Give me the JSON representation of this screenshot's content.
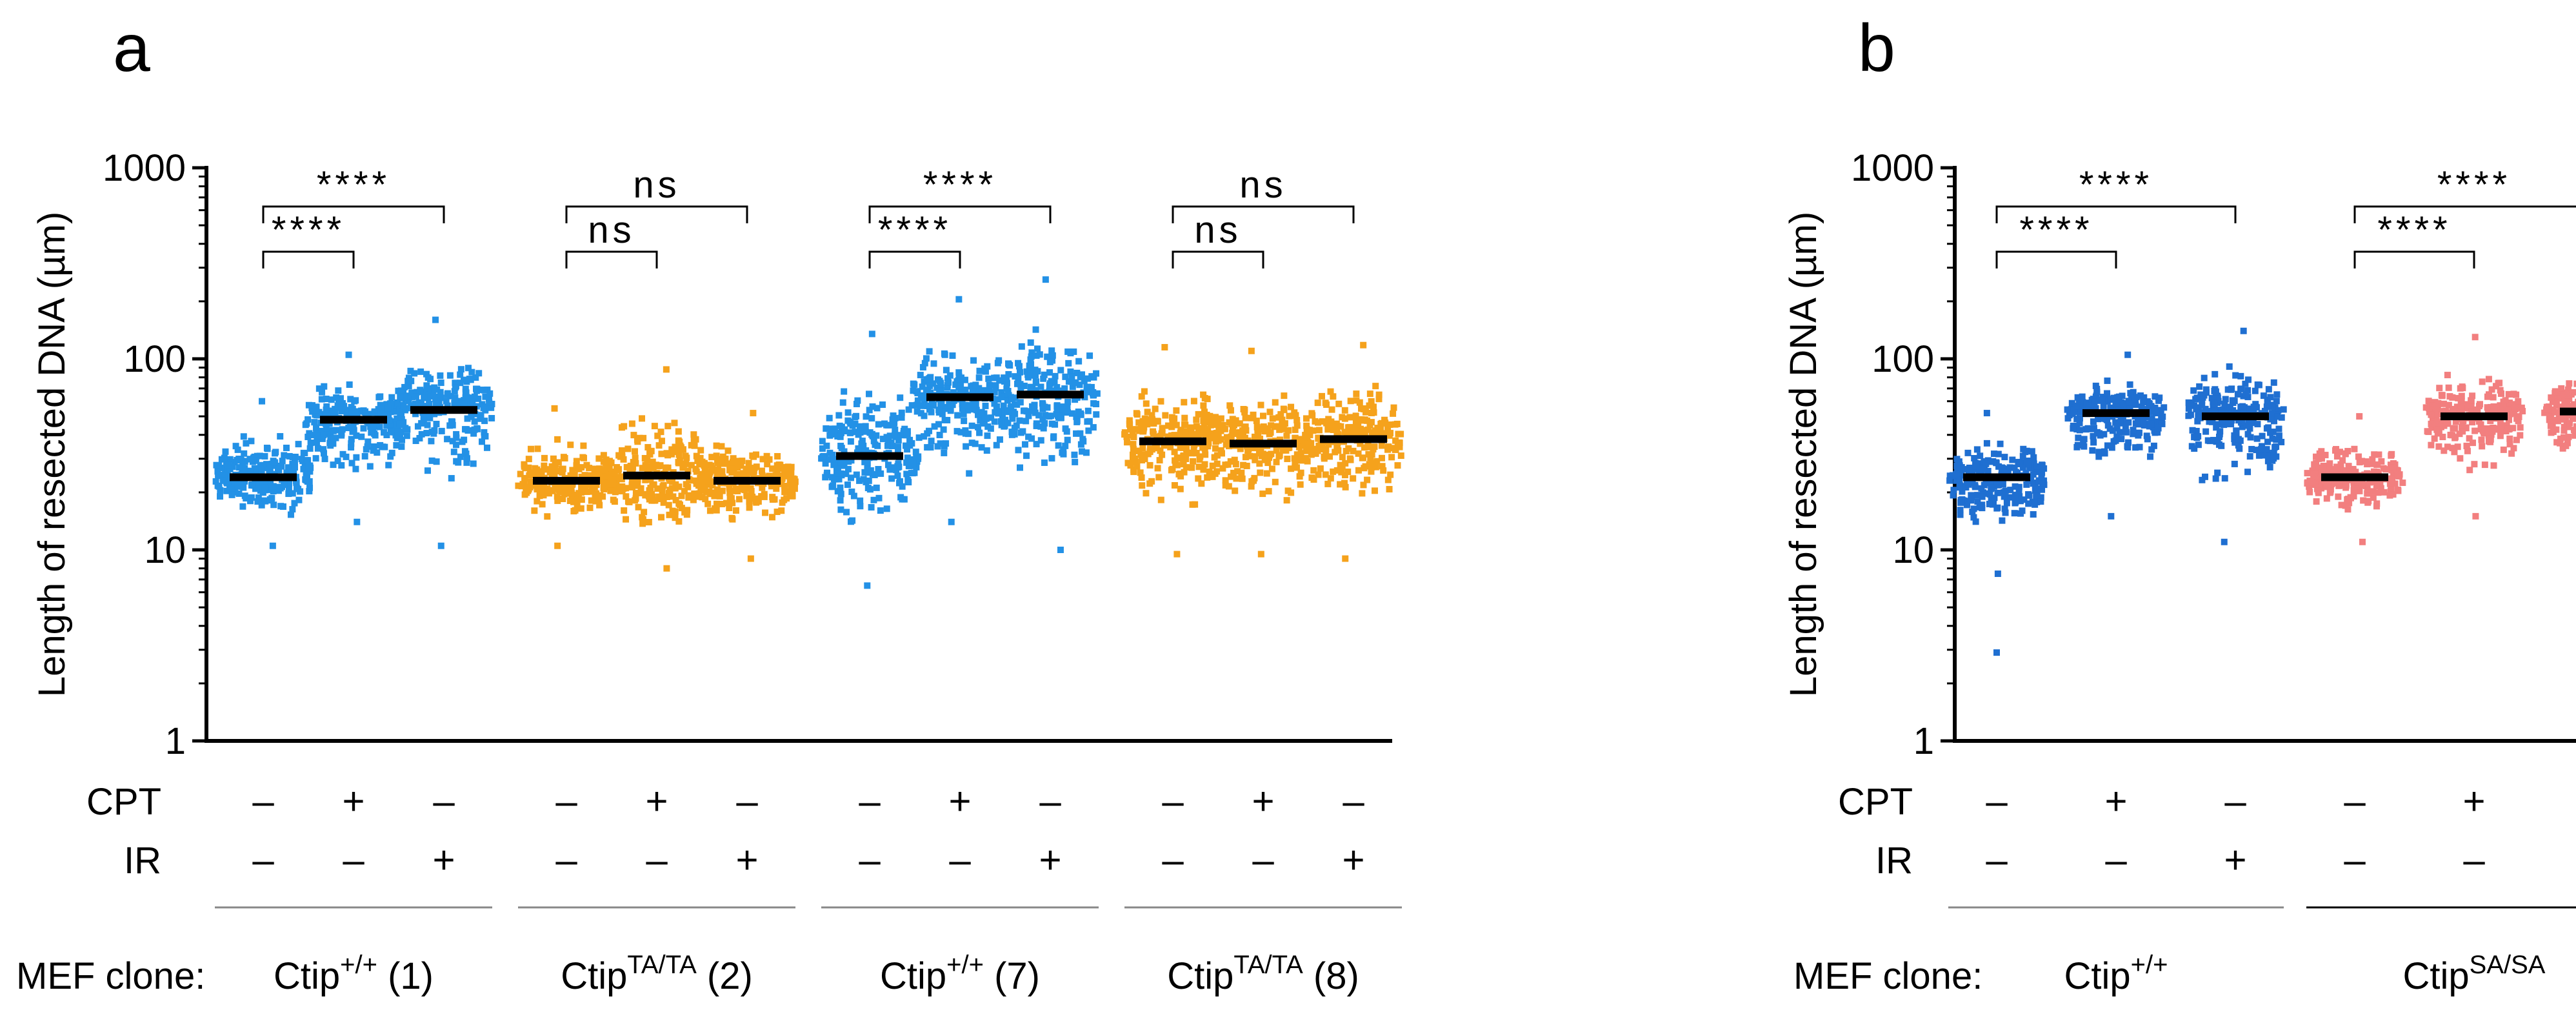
{
  "chart_data": [
    {
      "panel": "a",
      "type": "scatter",
      "ylabel": "Length of resected DNA (µm)",
      "yscale": "log",
      "ylim": [
        1,
        1000
      ],
      "yticks": [
        "1",
        "10",
        "100",
        "1000"
      ],
      "row_labels": [
        "CPT",
        "IR"
      ],
      "group_prefix": "MEF clone:",
      "treatments": [
        {
          "cpt": "–",
          "ir": "–"
        },
        {
          "cpt": "+",
          "ir": "–"
        },
        {
          "cpt": "–",
          "ir": "+"
        },
        {
          "cpt": "–",
          "ir": "–"
        },
        {
          "cpt": "+",
          "ir": "–"
        },
        {
          "cpt": "–",
          "ir": "+"
        },
        {
          "cpt": "–",
          "ir": "–"
        },
        {
          "cpt": "+",
          "ir": "–"
        },
        {
          "cpt": "–",
          "ir": "+"
        },
        {
          "cpt": "–",
          "ir": "–"
        },
        {
          "cpt": "+",
          "ir": "–"
        },
        {
          "cpt": "–",
          "ir": "+"
        }
      ],
      "groups": [
        {
          "base": "Ctip",
          "sup": "+/+",
          "suffix": " (1)",
          "color": "#2391e6"
        },
        {
          "base": "Ctip",
          "sup": "TA/TA",
          "suffix": " (2)",
          "color": "#f5a21c"
        },
        {
          "base": "Ctip",
          "sup": "+/+",
          "suffix": " (7)",
          "color": "#2391e6"
        },
        {
          "base": "Ctip",
          "sup": "TA/TA",
          "suffix": " (8)",
          "color": "#f5a21c"
        }
      ],
      "series": [
        {
          "color": "#2391e6",
          "median": 24,
          "min": 10.5,
          "max": 60,
          "n": 230
        },
        {
          "color": "#2391e6",
          "median": 48,
          "min": 14,
          "max": 105,
          "n": 230
        },
        {
          "color": "#2391e6",
          "median": 54,
          "min": 10.5,
          "max": 160,
          "n": 230
        },
        {
          "color": "#f5a21c",
          "median": 23,
          "min": 10.5,
          "max": 55,
          "n": 230
        },
        {
          "color": "#f5a21c",
          "median": 24.5,
          "min": 8,
          "max": 88,
          "n": 230
        },
        {
          "color": "#f5a21c",
          "median": 23,
          "min": 9,
          "max": 52,
          "n": 230
        },
        {
          "color": "#2391e6",
          "median": 31,
          "min": 6.5,
          "max": 135,
          "n": 230
        },
        {
          "color": "#2391e6",
          "median": 63,
          "min": 14,
          "max": 205,
          "n": 230
        },
        {
          "color": "#2391e6",
          "median": 65,
          "min": 10,
          "max": 260,
          "n": 230
        },
        {
          "color": "#f5a21c",
          "median": 37,
          "min": 9.5,
          "max": 115,
          "n": 230
        },
        {
          "color": "#f5a21c",
          "median": 36,
          "min": 9.5,
          "max": 110,
          "n": 230
        },
        {
          "color": "#f5a21c",
          "median": 38,
          "min": 9,
          "max": 118,
          "n": 230
        }
      ],
      "comparisons": [
        {
          "from": 0,
          "to": 1,
          "label": "****"
        },
        {
          "from": 0,
          "to": 2,
          "label": "****"
        },
        {
          "from": 3,
          "to": 4,
          "label": "ns"
        },
        {
          "from": 3,
          "to": 5,
          "label": "ns"
        },
        {
          "from": 6,
          "to": 7,
          "label": "****"
        },
        {
          "from": 6,
          "to": 8,
          "label": "****"
        },
        {
          "from": 9,
          "to": 10,
          "label": "ns"
        },
        {
          "from": 9,
          "to": 11,
          "label": "ns"
        }
      ]
    },
    {
      "panel": "b",
      "type": "scatter",
      "ylabel": "Length of resected DNA (µm)",
      "yscale": "log",
      "ylim": [
        1,
        1000
      ],
      "yticks": [
        "1",
        "10",
        "100",
        "1000"
      ],
      "row_labels": [
        "CPT",
        "IR"
      ],
      "group_prefix": "MEF clone:",
      "treatments": [
        {
          "cpt": "–",
          "ir": "–"
        },
        {
          "cpt": "+",
          "ir": "–"
        },
        {
          "cpt": "–",
          "ir": "+"
        },
        {
          "cpt": "–",
          "ir": "–"
        },
        {
          "cpt": "+",
          "ir": "–"
        },
        {
          "cpt": "–",
          "ir": "+"
        }
      ],
      "groups": [
        {
          "base": "Ctip",
          "sup": "+/+",
          "suffix": "",
          "color": "#1f6fd1"
        },
        {
          "base": "Ctip",
          "sup": "SA/SA",
          "suffix": "",
          "color": "#f27f7f"
        }
      ],
      "series": [
        {
          "color": "#1f6fd1",
          "median": 24,
          "min": 7.5,
          "max": 52,
          "n": 230
        },
        {
          "color": "#1f6fd1",
          "median": 52,
          "min": 15,
          "max": 105,
          "n": 230
        },
        {
          "color": "#1f6fd1",
          "median": 50,
          "min": 11,
          "max": 140,
          "n": 230
        },
        {
          "color": "#f27f7f",
          "median": 24,
          "min": 11,
          "max": 50,
          "n": 230
        },
        {
          "color": "#f27f7f",
          "median": 50,
          "min": 15,
          "max": 130,
          "n": 230
        },
        {
          "color": "#f27f7f",
          "median": 53,
          "min": 19,
          "max": 105,
          "n": 230
        }
      ],
      "outliers": [
        {
          "index": 0,
          "y": 2.9
        }
      ],
      "comparisons": [
        {
          "from": 0,
          "to": 1,
          "label": "****"
        },
        {
          "from": 0,
          "to": 2,
          "label": "****"
        },
        {
          "from": 3,
          "to": 4,
          "label": "****"
        },
        {
          "from": 3,
          "to": 5,
          "label": "****"
        }
      ]
    }
  ]
}
